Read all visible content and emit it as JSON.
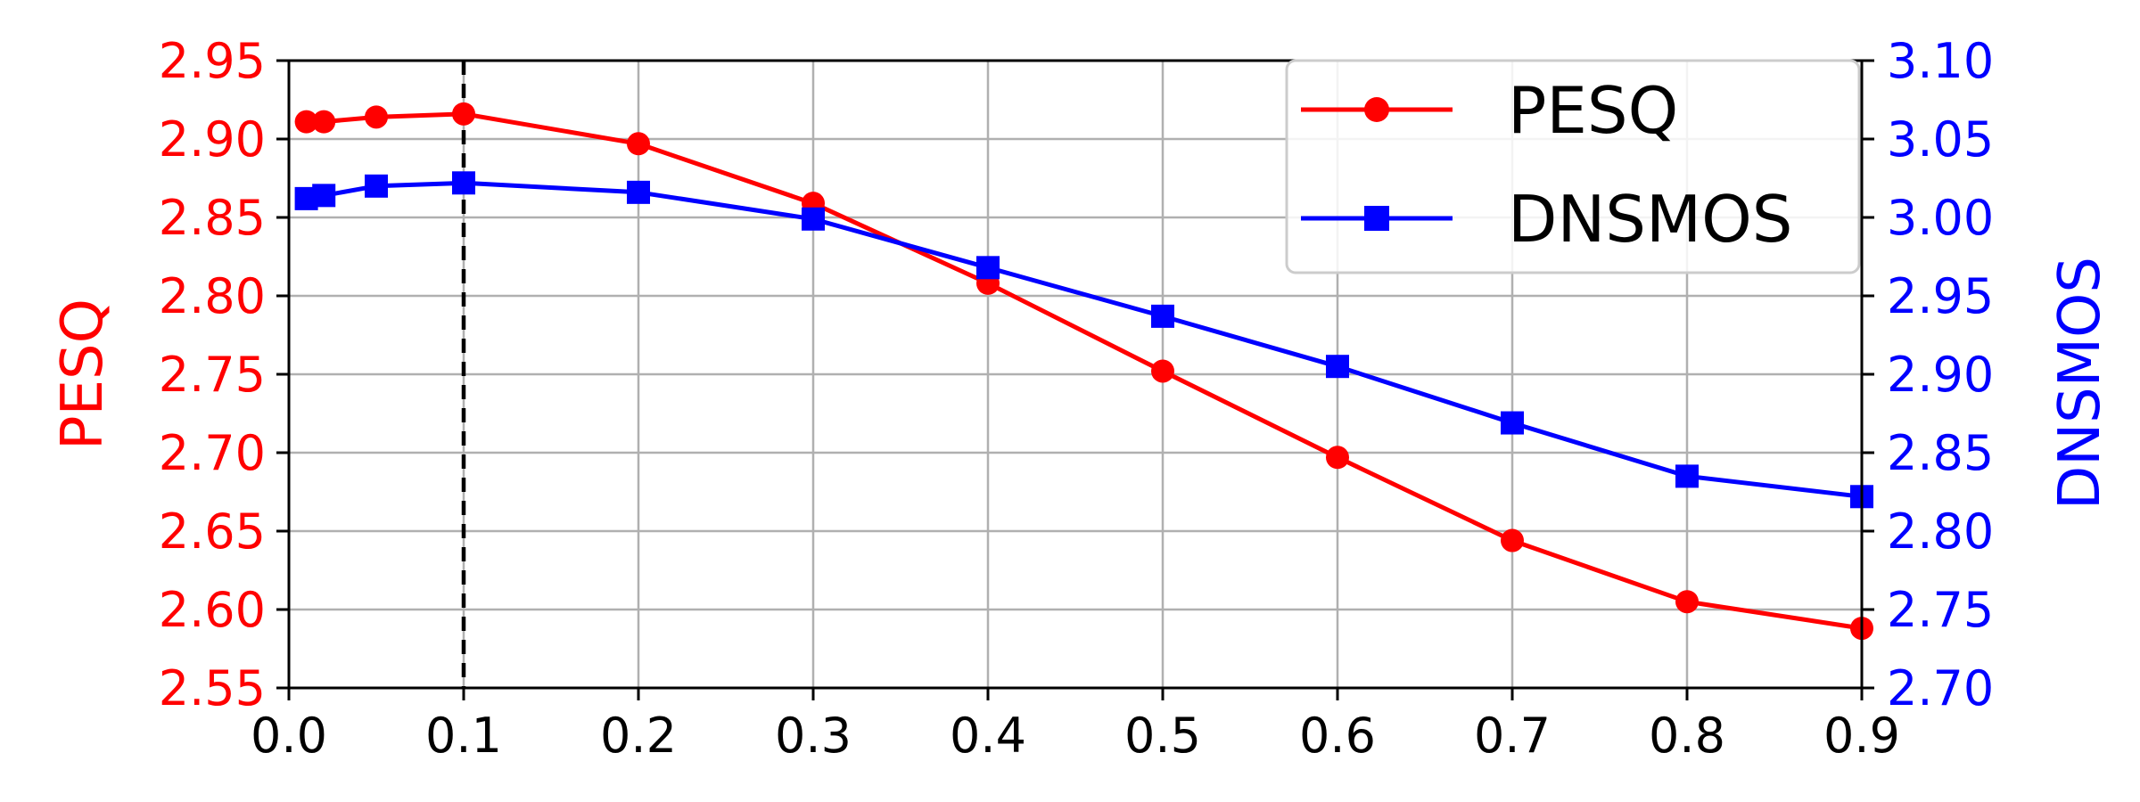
{
  "chart_data": {
    "type": "line",
    "x": [
      0.01,
      0.02,
      0.05,
      0.1,
      0.2,
      0.3,
      0.4,
      0.5,
      0.6,
      0.7,
      0.8,
      0.9
    ],
    "xlim": [
      0.0,
      0.9
    ],
    "xticks": [
      "0.0",
      "0.1",
      "0.2",
      "0.3",
      "0.4",
      "0.5",
      "0.6",
      "0.7",
      "0.8",
      "0.9"
    ],
    "xlabel": "",
    "grid": true,
    "marker_line_x": 0.1,
    "legend_position": "top-right",
    "series": [
      {
        "name": "PESQ",
        "axis": "left",
        "color": "#ff0000",
        "marker": "circle",
        "values": [
          2.911,
          2.911,
          2.914,
          2.916,
          2.897,
          2.859,
          2.808,
          2.752,
          2.697,
          2.644,
          2.605,
          2.588
        ]
      },
      {
        "name": "DNSMOS",
        "axis": "right",
        "color": "#0000ff",
        "marker": "square",
        "values": [
          3.012,
          3.014,
          3.02,
          3.022,
          3.016,
          2.999,
          2.968,
          2.937,
          2.905,
          2.869,
          2.835,
          2.822
        ]
      }
    ],
    "y_left": {
      "label": "PESQ",
      "color": "#ff0000",
      "ylim": [
        2.55,
        2.95
      ],
      "ticks": [
        "2.55",
        "2.60",
        "2.65",
        "2.70",
        "2.75",
        "2.80",
        "2.85",
        "2.90",
        "2.95"
      ]
    },
    "y_right": {
      "label": "DNSMOS",
      "color": "#0000ff",
      "ylim": [
        2.7,
        3.1
      ],
      "ticks": [
        "2.70",
        "2.75",
        "2.80",
        "2.85",
        "2.90",
        "2.95",
        "3.00",
        "3.05",
        "3.10"
      ]
    }
  }
}
